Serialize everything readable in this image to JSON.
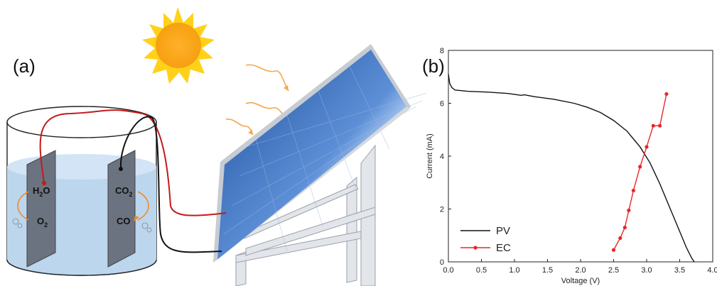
{
  "panels": {
    "a": "(a)",
    "b": "(b)"
  },
  "cell": {
    "anode_species_top": "H",
    "anode_sub": "2",
    "anode_species_tail": "O",
    "anode_product": "O",
    "anode_product_sub": "2",
    "cathode_species": "CO",
    "cathode_sub": "2",
    "cathode_product": "CO"
  },
  "colors": {
    "pv": "#111111",
    "ec": "#e8262b",
    "water": "#bcd6ee",
    "sun": "#f7a81b"
  },
  "chart_data": {
    "type": "line",
    "xlabel": "Voltage (V)",
    "ylabel": "Current (mA)",
    "xlim": [
      0.0,
      4.0
    ],
    "ylim": [
      0,
      8
    ],
    "xticks": [
      "0.0",
      "0.5",
      "1.0",
      "1.5",
      "2.0",
      "2.5",
      "3.0",
      "3.5",
      "4.0"
    ],
    "yticks": [
      "0",
      "2",
      "4",
      "6",
      "8"
    ],
    "legend_position": "bottom-left",
    "series": [
      {
        "name": "PV",
        "color": "#111111",
        "markers": false,
        "x": [
          0.0,
          0.02,
          0.05,
          0.1,
          0.3,
          0.6,
          0.9,
          1.1,
          1.15,
          1.3,
          1.6,
          1.9,
          2.1,
          2.3,
          2.5,
          2.7,
          2.9,
          3.05,
          3.2,
          3.35,
          3.5,
          3.6,
          3.68,
          3.72
        ],
        "y": [
          7.1,
          6.75,
          6.6,
          6.5,
          6.45,
          6.42,
          6.37,
          6.3,
          6.32,
          6.25,
          6.15,
          6.0,
          5.85,
          5.65,
          5.35,
          4.95,
          4.35,
          3.75,
          2.95,
          2.05,
          1.15,
          0.55,
          0.15,
          0.0
        ]
      },
      {
        "name": "EC",
        "color": "#e8262b",
        "markers": true,
        "x": [
          2.5,
          2.6,
          2.67,
          2.73,
          2.8,
          2.9,
          3.0,
          3.1,
          3.2,
          3.3
        ],
        "y": [
          0.45,
          0.9,
          1.3,
          1.95,
          2.7,
          3.6,
          4.35,
          5.15,
          5.15,
          6.35
        ]
      }
    ]
  }
}
